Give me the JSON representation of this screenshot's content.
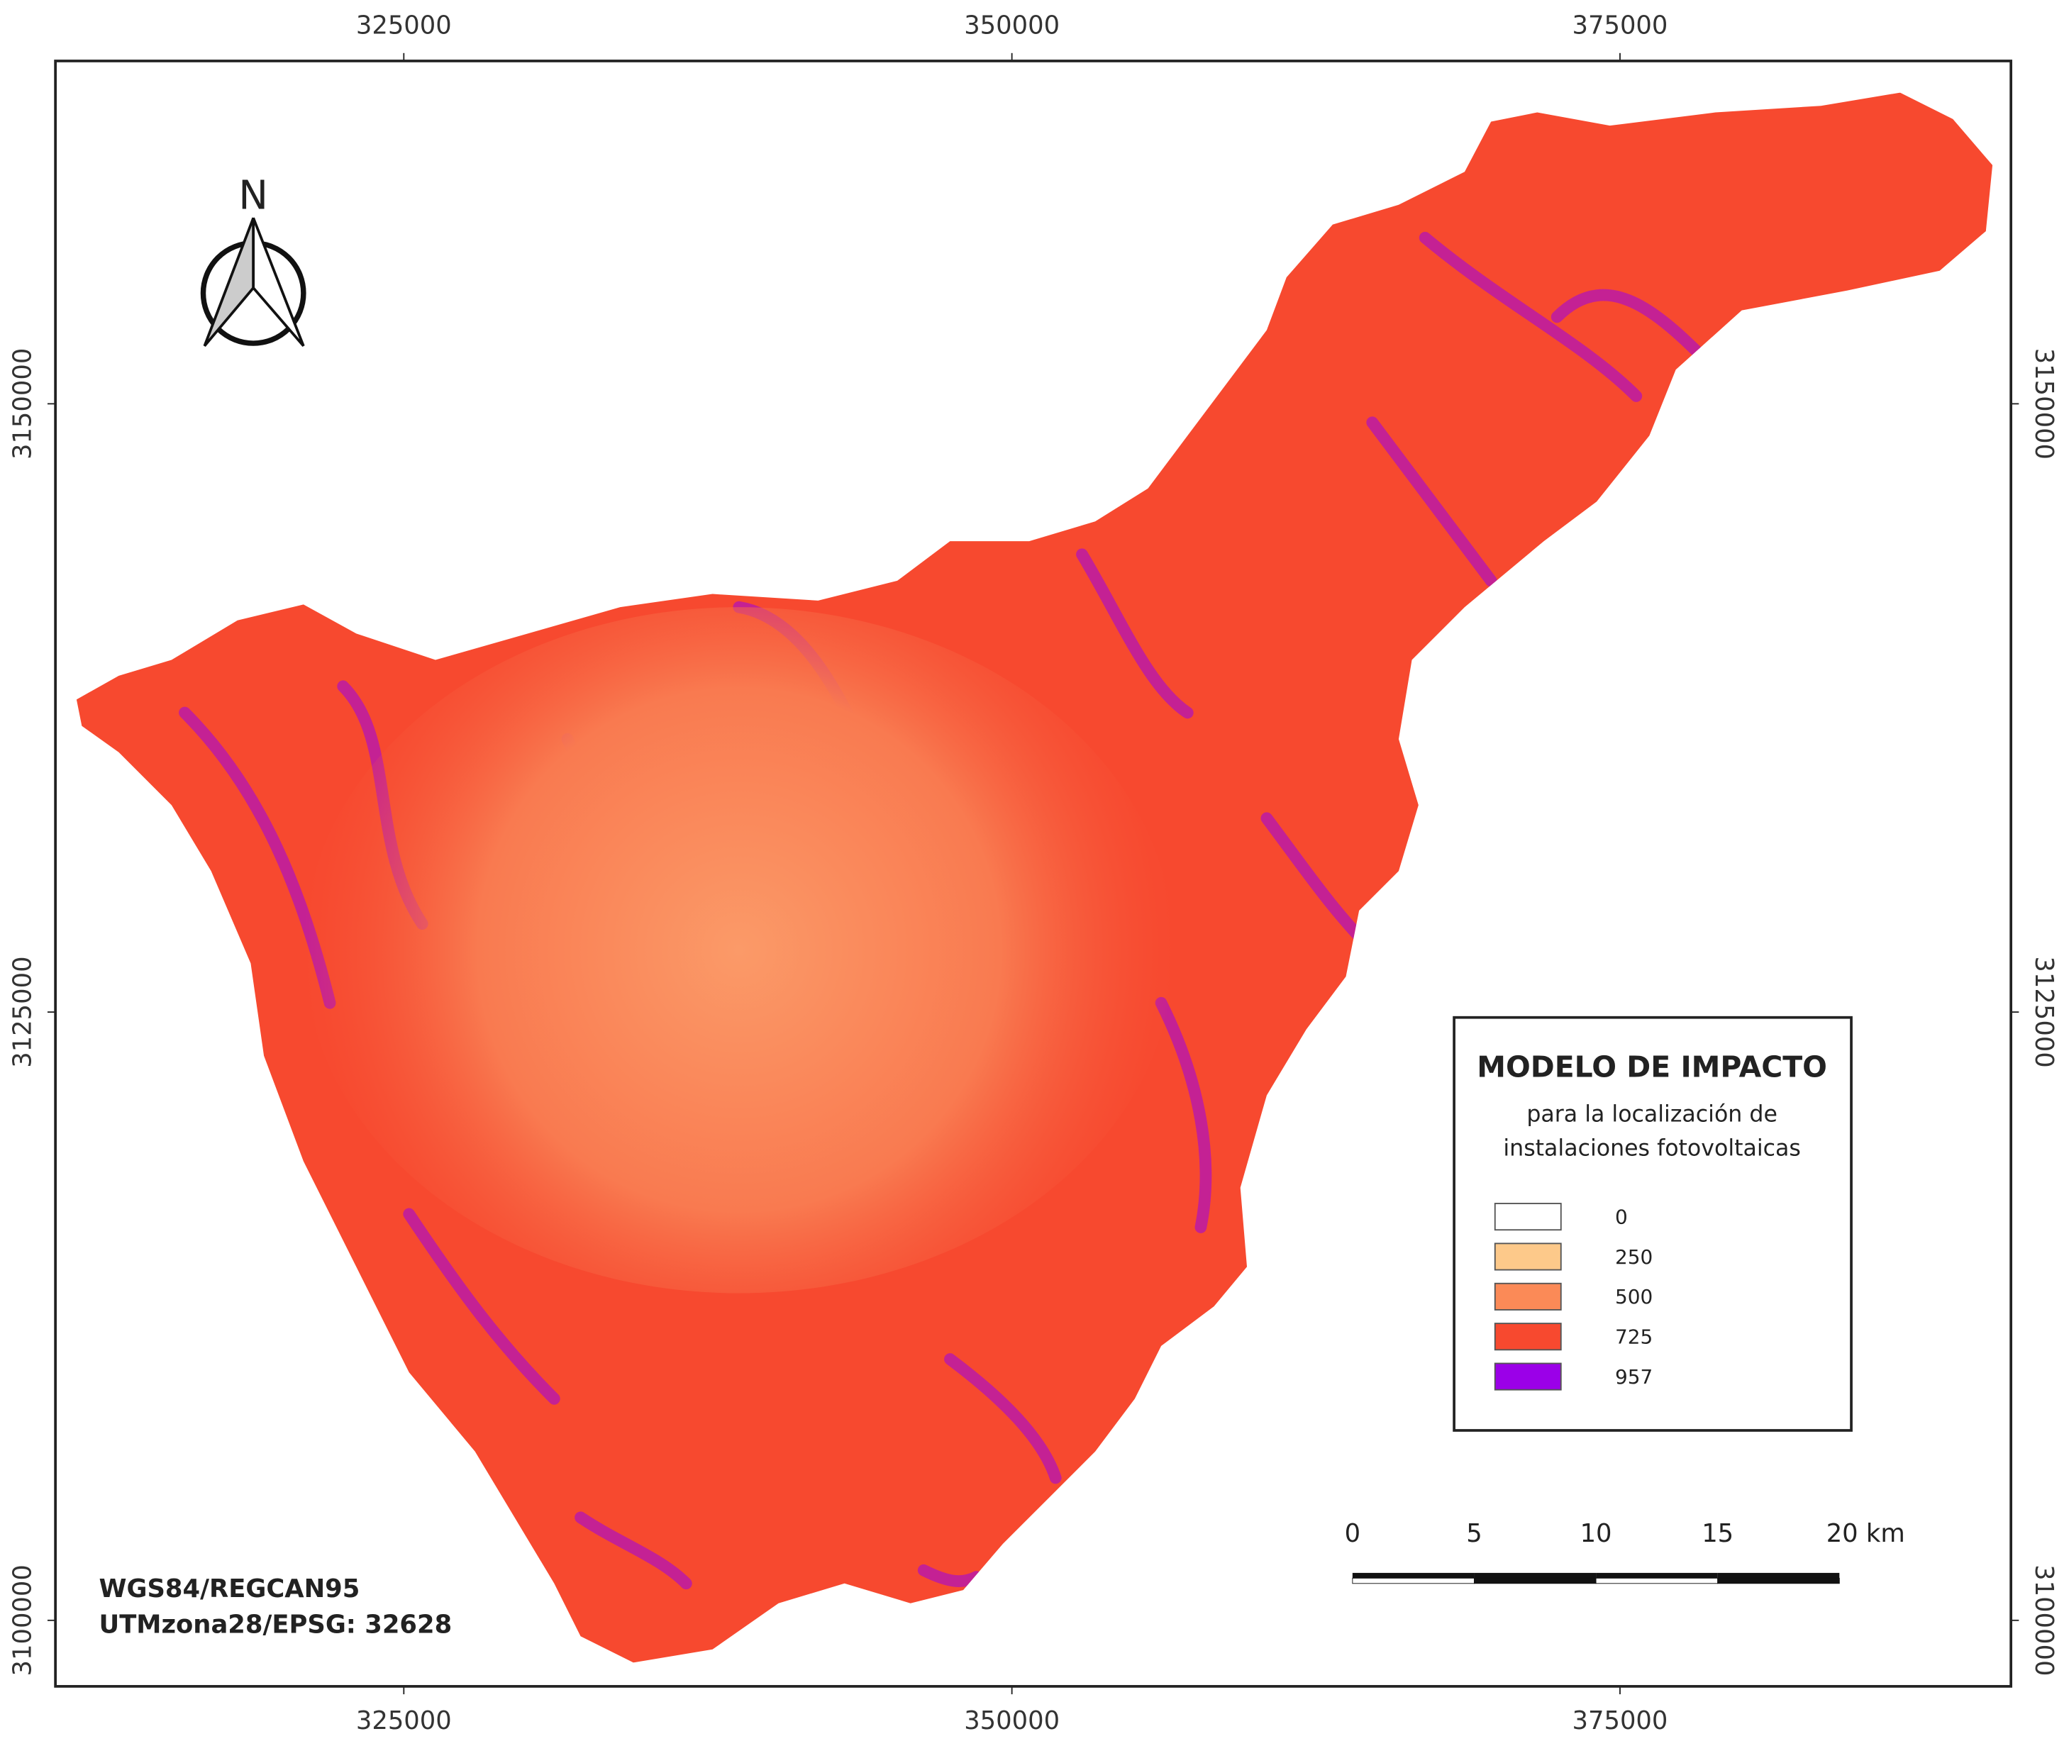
{
  "map": {
    "xlim": [
      310677,
      391073
    ],
    "ylim": [
      3097287,
      3164090
    ],
    "xticks": [
      325000,
      350000,
      375000
    ],
    "yticks": [
      3100000,
      3125000,
      3150000
    ],
    "north_label": "N",
    "legend": {
      "title": "MODELO DE IMPACTO",
      "subtitle": [
        "para la localización de",
        "instalaciones fotovoltaicas"
      ],
      "items": [
        {
          "value": 0,
          "color": "#ffffff"
        },
        {
          "value": 250,
          "color": "#fdc98a"
        },
        {
          "value": 500,
          "color": "#fb8a57"
        },
        {
          "value": 725,
          "color": "#f7492f"
        },
        {
          "value": 957,
          "color": "#9b00e8"
        }
      ]
    },
    "scale_bar": {
      "ticks": [
        0,
        5,
        10,
        15,
        {
          "value": 20,
          "label": "20 km"
        }
      ]
    },
    "crs": [
      "WGS84/REGCAN95",
      "UTMzona28/EPSG: 32628"
    ]
  }
}
